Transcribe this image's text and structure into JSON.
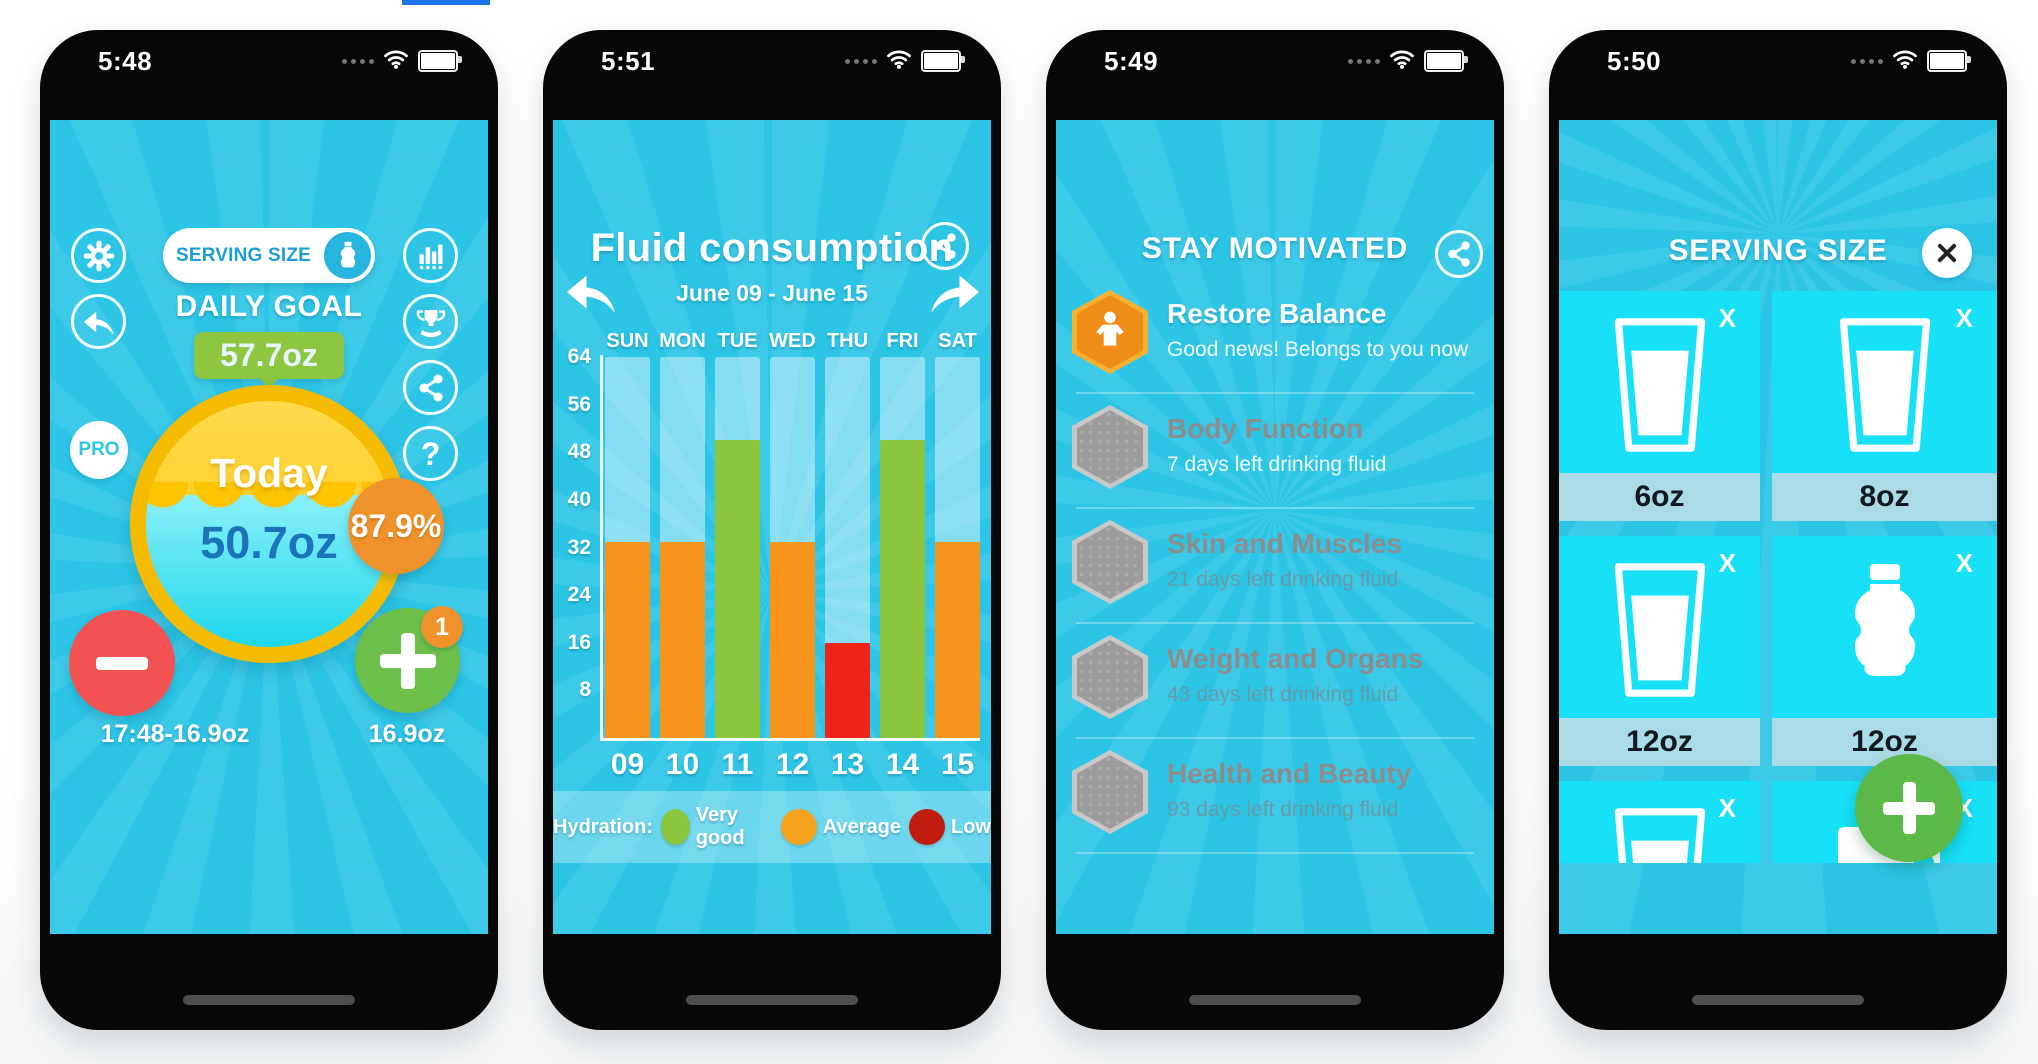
{
  "page": {
    "description": "Four App Store iPhone screenshots of a water tracking app",
    "tab_underline_color": "#1a73e8"
  },
  "colors": {
    "teal_background": "#2cc5e6",
    "cell_cyan": "#17e0f7",
    "goal_green": "#8dc63f",
    "progress_orange": "#f0922b",
    "minus_red": "#f25352",
    "plus_green": "#6cc04a",
    "fab_green": "#5cb847",
    "ring_gold": "#f5bb00",
    "water_cyan": "#1cd6ec",
    "bar_orange": "#f7941e",
    "bar_green": "#8cc63e",
    "bar_red": "#ee2418",
    "legend_low_red": "#c01d10",
    "locked_gray": "#9c9c9c",
    "hex_orange": "#ee8d17",
    "tab_blue": "#1a73e8"
  },
  "home_screen": {
    "time": "5:48",
    "serving_size_button": "SERVING SIZE",
    "daily_goal_label": "DAILY GOAL",
    "daily_goal_value": "57.7oz",
    "pro_badge": "PRO",
    "today_label": "Today",
    "today_value": "50.7oz",
    "progress_percent": "87.9%",
    "plus_badge_count": "1",
    "minus_entry_label": "17:48-16.9oz",
    "plus_serving_label": "16.9oz",
    "help_glyph": "?",
    "left_icons": [
      "settings-gear-icon",
      "back-arrow-icon"
    ],
    "right_icons": [
      "stats-bars-icon",
      "trophy-icon",
      "share-icon",
      "help-icon"
    ]
  },
  "chart_screen": {
    "time": "5:51",
    "date_range": "June 09 - June 15",
    "legend": {
      "label": "Hydration:",
      "items": [
        {
          "label": "Very good",
          "color": "#8cc63e"
        },
        {
          "label": "Average",
          "color": "#f5a31f"
        },
        {
          "label": "Low",
          "color": "#c01d10"
        }
      ]
    },
    "icons": [
      "prev-week-arrow-icon",
      "next-week-arrow-icon",
      "share-icon"
    ]
  },
  "chart_data": {
    "type": "bar",
    "title": "Fluid consumption",
    "subtitle": "June 09 - June 15",
    "categories": [
      "SUN",
      "MON",
      "TUE",
      "WED",
      "THU",
      "FRI",
      "SAT"
    ],
    "x_labels": [
      "09",
      "10",
      "11",
      "12",
      "13",
      "14",
      "15"
    ],
    "values": [
      33,
      33,
      50,
      33,
      16,
      50,
      33
    ],
    "colors": [
      "#f7941e",
      "#f7941e",
      "#8cc63e",
      "#f7941e",
      "#ee2418",
      "#8cc63e",
      "#f7941e"
    ],
    "hydration_levels": [
      "Average",
      "Average",
      "Very good",
      "Average",
      "Low",
      "Very good",
      "Average"
    ],
    "xlabel": "",
    "ylabel": "",
    "ylim": [
      0,
      64
    ],
    "yticks": [
      64,
      56,
      48,
      40,
      32,
      24,
      16,
      8
    ],
    "grid": false,
    "legend_position": "bottom"
  },
  "motivation_screen": {
    "time": "5:49",
    "title": "STAY MOTIVATED",
    "items": [
      {
        "title": "Restore Balance",
        "subtitle": "Good news! Belongs to you now",
        "state": "unlocked"
      },
      {
        "title": "Body Function",
        "subtitle": "7 days left drinking fluid",
        "state": "next"
      },
      {
        "title": "Skin and Muscles",
        "subtitle": "21 days left drinking fluid",
        "state": "locked"
      },
      {
        "title": "Weight and Organs",
        "subtitle": "43 days left drinking fluid",
        "state": "locked"
      },
      {
        "title": "Health and Beauty",
        "subtitle": "93 days left drinking fluid",
        "state": "locked"
      }
    ],
    "icons": [
      "share-icon",
      "person-flex-icon",
      "locked-hexagon-badge"
    ]
  },
  "serving_screen": {
    "time": "5:50",
    "title": "SERVING SIZE",
    "remove_glyph": "X",
    "items": [
      {
        "label": "6oz",
        "icon": "glass-icon"
      },
      {
        "label": "8oz",
        "icon": "glass-icon"
      },
      {
        "label": "12oz",
        "icon": "glass-icon"
      },
      {
        "label": "12oz",
        "icon": "bottle-icon"
      },
      {
        "label": "",
        "icon": "glass-icon"
      },
      {
        "label": "",
        "icon": "mug-icon"
      }
    ],
    "icons": [
      "close-icon",
      "add-serving-plus-icon"
    ]
  }
}
